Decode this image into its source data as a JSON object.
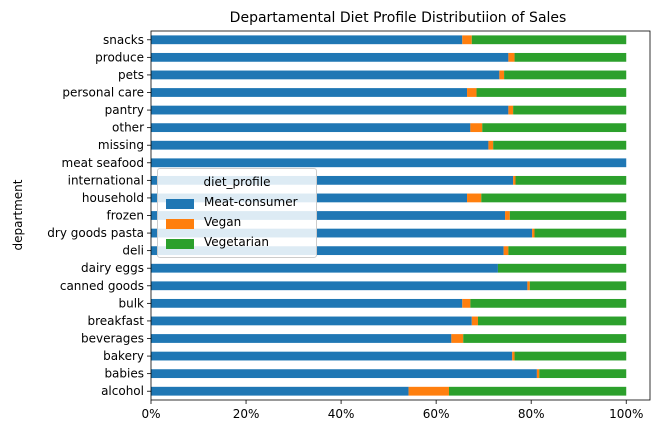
{
  "chart_data": {
    "type": "bar",
    "orientation": "horizontal",
    "stacked": true,
    "title": "Departamental Diet Profile Distributiion of Sales",
    "xlabel": "",
    "ylabel": "department",
    "xlim": [
      0,
      1.05
    ],
    "x_ticks": [
      "0%",
      "20%",
      "40%",
      "60%",
      "80%",
      "100%"
    ],
    "categories": [
      "snacks",
      "produce",
      "pets",
      "personal care",
      "pantry",
      "other",
      "missing",
      "meat seafood",
      "international",
      "household",
      "frozen",
      "dry goods pasta",
      "deli",
      "dairy eggs",
      "canned goods",
      "bulk",
      "breakfast",
      "beverages",
      "bakery",
      "babies",
      "alcohol"
    ],
    "legend": {
      "title": "diet_profile",
      "placement": "center-left"
    },
    "series": [
      {
        "name": "Meat-consumer",
        "color": "#1f77b4",
        "values": [
          0.655,
          0.752,
          0.733,
          0.665,
          0.752,
          0.672,
          0.71,
          1.0,
          0.762,
          0.665,
          0.745,
          0.802,
          0.742,
          0.73,
          0.792,
          0.655,
          0.675,
          0.632,
          0.76,
          0.812,
          0.542
        ]
      },
      {
        "name": "Vegan",
        "color": "#ff7f0e",
        "values": [
          0.02,
          0.013,
          0.01,
          0.02,
          0.01,
          0.025,
          0.01,
          0.0,
          0.005,
          0.03,
          0.01,
          0.005,
          0.01,
          0.0,
          0.005,
          0.017,
          0.013,
          0.025,
          0.005,
          0.005,
          0.085
        ]
      },
      {
        "name": "Vegetarian",
        "color": "#2ca02c",
        "values": [
          0.325,
          0.235,
          0.257,
          0.315,
          0.238,
          0.303,
          0.28,
          0.0,
          0.233,
          0.305,
          0.245,
          0.193,
          0.248,
          0.27,
          0.203,
          0.328,
          0.312,
          0.343,
          0.235,
          0.183,
          0.373
        ]
      }
    ]
  }
}
